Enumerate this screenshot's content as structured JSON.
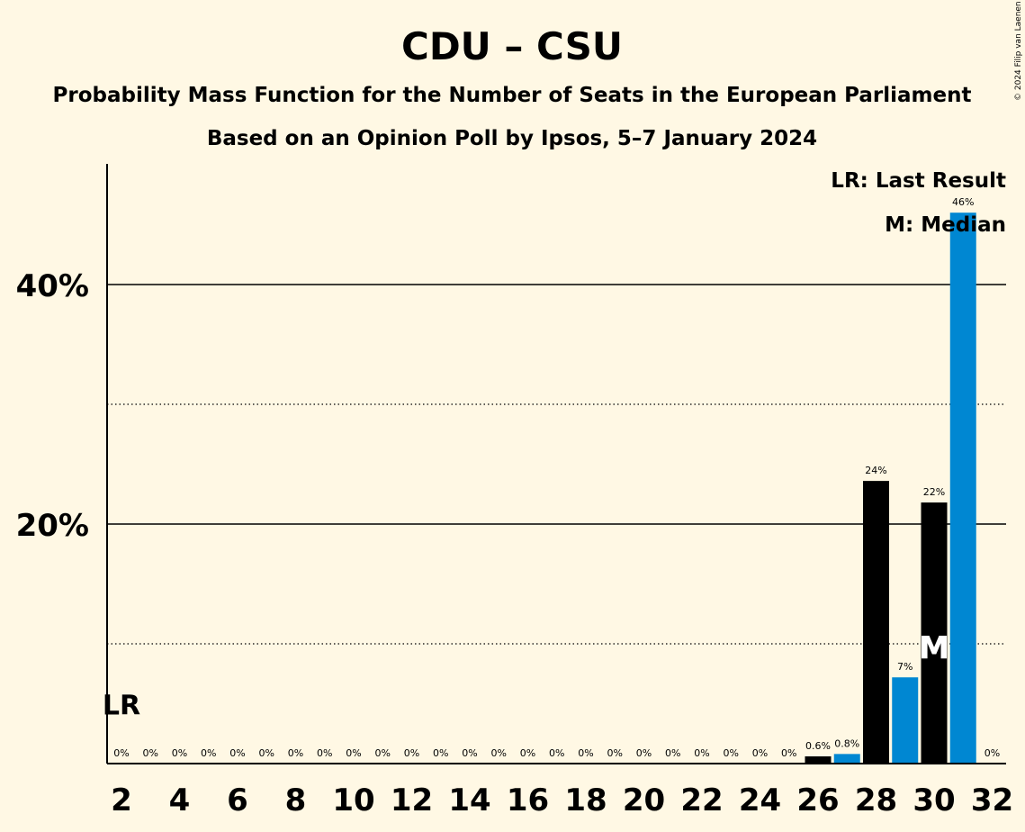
{
  "title": "CDU – CSU",
  "subtitle": "Probability Mass Function for the Number of Seats in the European Parliament",
  "subtitle2": "Based on an Opinion Poll by Ipsos, 5–7 January 2024",
  "copyright": "© 2024 Filip van Laenen",
  "legend": {
    "last_result": "LR: Last Result",
    "median": "M: Median"
  },
  "markers": {
    "last_result_label": "LR",
    "median_label": "M"
  },
  "colors": {
    "background": "#FFF8E4",
    "bar_dark": "#000000",
    "bar_blue": "#0087D2",
    "text": "#000000"
  },
  "chart_data": {
    "type": "bar",
    "x": [
      2,
      3,
      4,
      5,
      6,
      7,
      8,
      9,
      10,
      11,
      12,
      13,
      14,
      15,
      16,
      17,
      18,
      19,
      20,
      21,
      22,
      23,
      24,
      25,
      26,
      27,
      28,
      29,
      30,
      31,
      32
    ],
    "values": [
      0,
      0,
      0,
      0,
      0,
      0,
      0,
      0,
      0,
      0,
      0,
      0,
      0,
      0,
      0,
      0,
      0,
      0,
      0,
      0,
      0,
      0,
      0,
      0,
      0.6,
      0.8,
      23.6,
      7.2,
      21.8,
      46.0,
      0
    ],
    "value_labels": [
      "0%",
      "0%",
      "0%",
      "0%",
      "0%",
      "0%",
      "0%",
      "0%",
      "0%",
      "0%",
      "0%",
      "0%",
      "0%",
      "0%",
      "0%",
      "0%",
      "0%",
      "0%",
      "0%",
      "0%",
      "0%",
      "0%",
      "0%",
      "0%",
      "0.6%",
      "0.8%",
      "24%",
      "7%",
      "22%",
      "46%",
      "0%"
    ],
    "bar_colors": [
      "dark",
      "blue",
      "dark",
      "blue",
      "dark",
      "blue",
      "dark",
      "blue",
      "dark",
      "blue",
      "dark",
      "blue",
      "dark",
      "blue",
      "dark",
      "blue",
      "dark",
      "blue",
      "dark",
      "blue",
      "dark",
      "blue",
      "dark",
      "blue",
      "dark",
      "blue",
      "dark",
      "blue",
      "dark",
      "blue",
      "dark"
    ],
    "x_tick_labels": [
      "2",
      "4",
      "6",
      "8",
      "10",
      "12",
      "14",
      "16",
      "18",
      "20",
      "22",
      "24",
      "26",
      "28",
      "30",
      "32"
    ],
    "y_ticks_major": [
      20,
      40
    ],
    "y_tick_labels": [
      "20%",
      "40%"
    ],
    "y_ticks_minor": [
      10,
      30
    ],
    "ylim": [
      0,
      50
    ],
    "last_result_seat": 2,
    "median_seat": 30,
    "legend_position": "top-right",
    "grid": true
  }
}
